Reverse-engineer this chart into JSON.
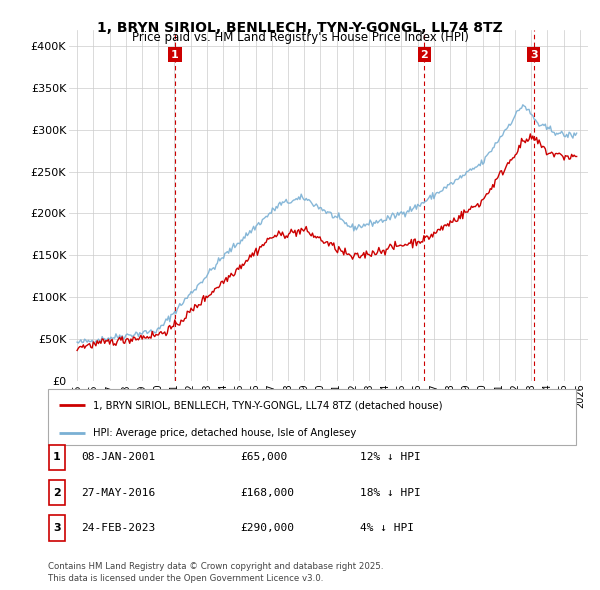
{
  "title": "1, BRYN SIRIOL, BENLLECH, TYN-Y-GONGL, LL74 8TZ",
  "subtitle": "Price paid vs. HM Land Registry's House Price Index (HPI)",
  "legend_red": "1, BRYN SIRIOL, BENLLECH, TYN-Y-GONGL, LL74 8TZ (detached house)",
  "legend_blue": "HPI: Average price, detached house, Isle of Anglesey",
  "transactions": [
    {
      "num": 1,
      "date": "08-JAN-2001",
      "price": 65000,
      "pct": "12%",
      "dir": "↓",
      "x": 2001.03
    },
    {
      "num": 2,
      "date": "27-MAY-2016",
      "price": 168000,
      "pct": "18%",
      "dir": "↓",
      "x": 2016.4
    },
    {
      "num": 3,
      "date": "24-FEB-2023",
      "price": 290000,
      "pct": "4%",
      "dir": "↓",
      "x": 2023.15
    }
  ],
  "footer": "Contains HM Land Registry data © Crown copyright and database right 2025.\nThis data is licensed under the Open Government Licence v3.0.",
  "ylim": [
    0,
    420000
  ],
  "xlim": [
    1994.5,
    2026.5
  ],
  "yticks": [
    0,
    50000,
    100000,
    150000,
    200000,
    250000,
    300000,
    350000,
    400000
  ],
  "ytick_labels": [
    "£0",
    "£50K",
    "£100K",
    "£150K",
    "£200K",
    "£250K",
    "£300K",
    "£350K",
    "£400K"
  ],
  "background_color": "#ffffff",
  "grid_color": "#cccccc",
  "red_color": "#cc0000",
  "blue_color": "#7ab0d4"
}
